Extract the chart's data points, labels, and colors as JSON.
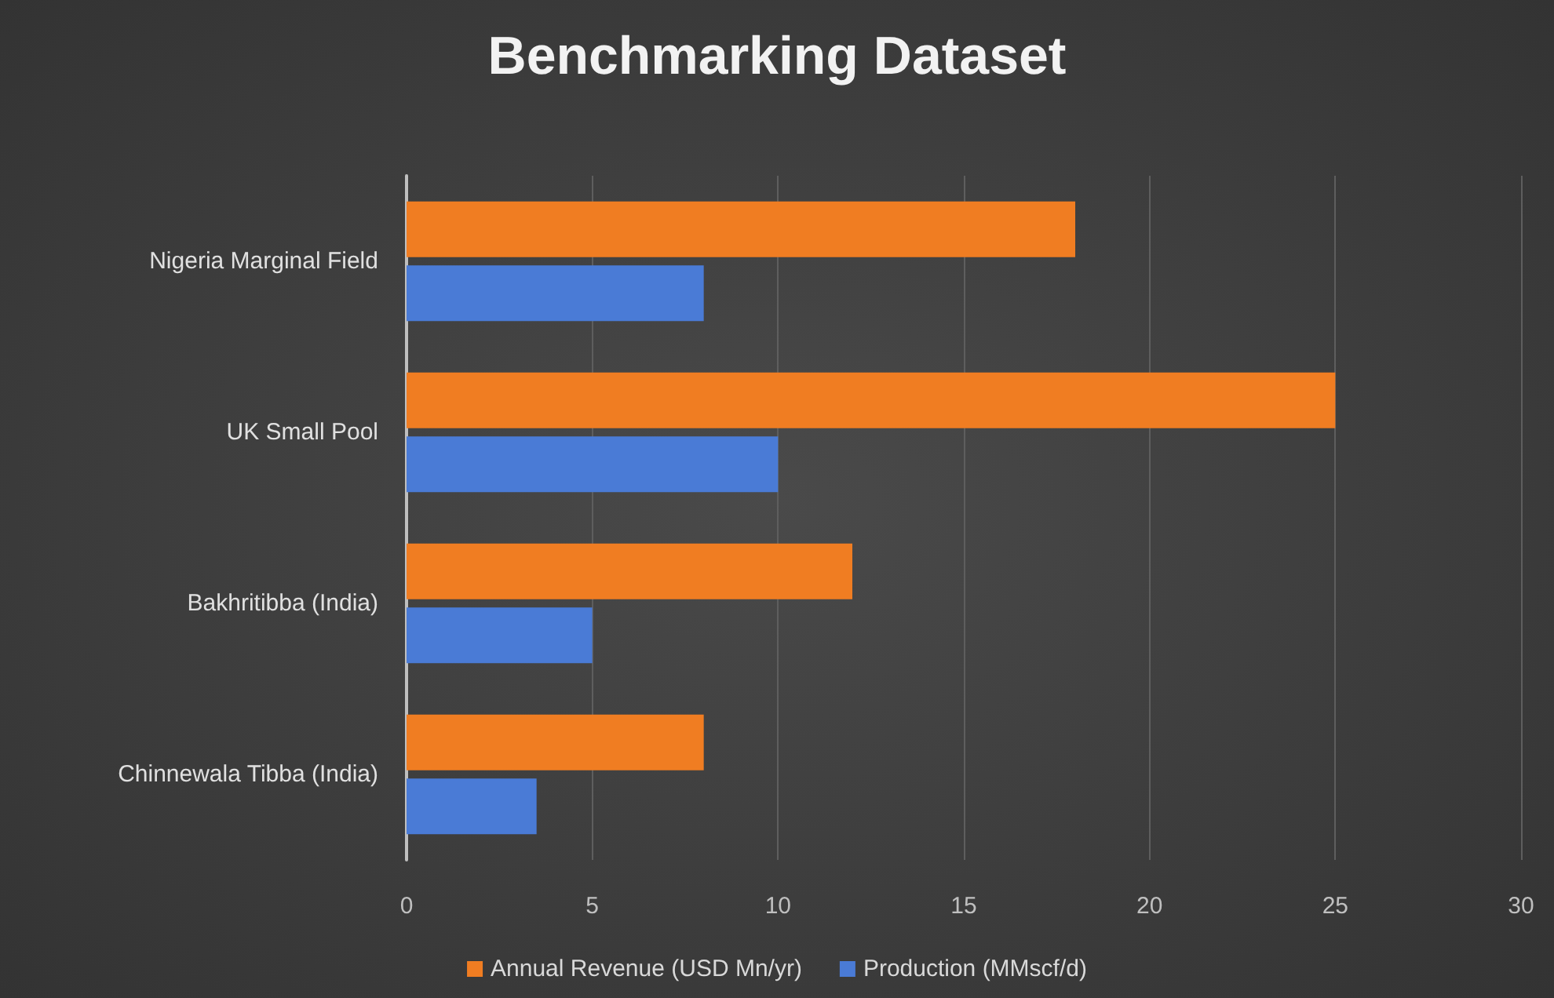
{
  "chart_data": {
    "type": "bar",
    "orientation": "horizontal",
    "title": "Benchmarking Dataset",
    "categories": [
      "Nigeria Marginal Field",
      "UK Small Pool",
      "Bakhritibba (India)",
      "Chinnewala Tibba (India)"
    ],
    "series": [
      {
        "name": "Annual Revenue (USD Mn/yr)",
        "color": "#f07d22",
        "values": [
          18,
          25,
          12,
          8
        ]
      },
      {
        "name": "Production (MMscf/d)",
        "color": "#4a7bd6",
        "values": [
          8,
          10,
          5,
          3.5
        ]
      }
    ],
    "xlim": [
      0,
      30
    ],
    "xticks": [
      0,
      5,
      10,
      15,
      20,
      25,
      30
    ],
    "grid": "x",
    "legend": "bottom"
  }
}
